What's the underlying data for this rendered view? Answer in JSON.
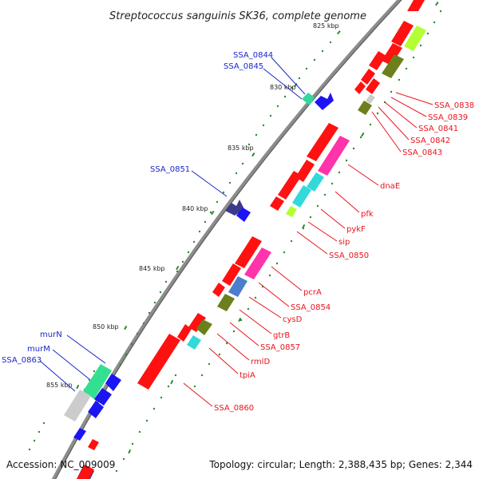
{
  "title": "Streptococcus sanguinis SK36, complete genome",
  "footer": {
    "accession": "Accession: NC_009009",
    "summary": "Topology: circular; Length: 2,388,435 bp; Genes: 2,344"
  },
  "colors": {
    "forward_cds": "#ff1111",
    "reverse_cds": "#1c14f5",
    "backbone": "#8c8c8c",
    "tick": "#2f8a2f",
    "label_blue": "#1a26c8",
    "label_red": "#e8141c"
  },
  "kbp_labels": [
    "825 kbp",
    "830 kbp",
    "835 kbp",
    "840 kbp",
    "845 kbp",
    "850 kbp",
    "855 kbp"
  ],
  "blue_labels": [
    "SSA_0844",
    "SSA_0845",
    "SSA_0851",
    "murN",
    "murM",
    "SSA_0863"
  ],
  "red_labels": [
    "SSA_0838",
    "SSA_0839",
    "SSA_0841",
    "SSA_0842",
    "SSA_0843",
    "dnaE",
    "pfk",
    "pykF",
    "sip",
    "SSA_0850",
    "pcrA",
    "SSA_0854",
    "cysD",
    "gtrB",
    "SSA_0857",
    "rmlD",
    "tpiA",
    "SSA_0860"
  ]
}
